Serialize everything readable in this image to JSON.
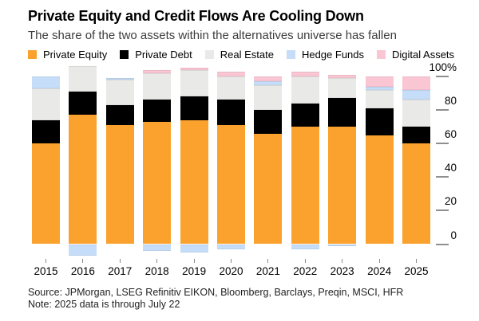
{
  "header": {
    "title": "Private Equity and Credit Flows Are Cooling Down",
    "subtitle": "The share of the two assets within the alternatives universe has fallen"
  },
  "legend": [
    {
      "label": "Private Equity",
      "color": "#FBA22E"
    },
    {
      "label": "Private Debt",
      "color": "#000000"
    },
    {
      "label": "Real Estate",
      "color": "#E9E9E7"
    },
    {
      "label": "Hedge Funds",
      "color": "#C5DDF8"
    },
    {
      "label": "Digital Assets",
      "color": "#FBC6D4"
    }
  ],
  "chart_data": {
    "type": "bar",
    "subtype": "stacked-percent",
    "title": "Private Equity and Credit Flows Are Cooling Down",
    "xlabel": "",
    "ylabel": "",
    "categories": [
      "2015",
      "2016",
      "2017",
      "2018",
      "2019",
      "2020",
      "2021",
      "2022",
      "2023",
      "2024",
      "2025"
    ],
    "series": [
      {
        "name": "Private Equity",
        "color": "#FBA22E",
        "values": [
          60,
          77,
          71,
          73,
          74,
          71,
          66,
          70,
          70,
          65,
          60
        ]
      },
      {
        "name": "Private Debt",
        "color": "#000000",
        "values": [
          14,
          14,
          12,
          13,
          14,
          15,
          14,
          14,
          17,
          16,
          10
        ]
      },
      {
        "name": "Real Estate",
        "color": "#E9E9E7",
        "values": [
          19,
          15,
          15,
          16,
          16,
          14,
          15,
          16,
          12,
          11,
          16
        ]
      },
      {
        "name": "Hedge Funds",
        "color": "#C5DDF8",
        "values": [
          7,
          -7,
          1,
          -4,
          -5,
          -3,
          2,
          -3,
          -1,
          2,
          6
        ]
      },
      {
        "name": "Digital Assets",
        "color": "#FBC6D4",
        "values": [
          0,
          0,
          0,
          2,
          1,
          3,
          3,
          3,
          2,
          6,
          8
        ]
      }
    ],
    "y_axis": {
      "side": "right",
      "ylim": [
        -8,
        106
      ],
      "ticks": [
        {
          "value": 0,
          "label": "0"
        },
        {
          "value": 20,
          "label": "20"
        },
        {
          "value": 40,
          "label": "40"
        },
        {
          "value": 60,
          "label": "60"
        },
        {
          "value": 80,
          "label": "80"
        },
        {
          "value": 100,
          "label": "100%"
        }
      ]
    },
    "grid": false,
    "legend_position": "top"
  },
  "footer": {
    "source": "Source: JPMorgan, LSEG Refinitiv EIKON, Bloomberg, Barclays, Preqin, MSCI, HFR",
    "note": "Note: 2025 data is through July 22"
  }
}
